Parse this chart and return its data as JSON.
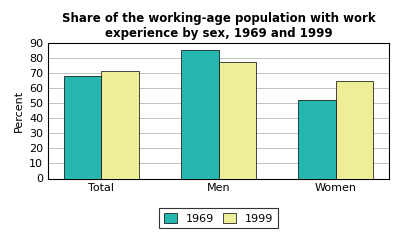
{
  "title": "Share of the working-age population with work\nexperience by sex, 1969 and 1999",
  "categories": [
    "Total",
    "Men",
    "Women"
  ],
  "values_1969": [
    68,
    85,
    52
  ],
  "values_1999": [
    71,
    77,
    65
  ],
  "color_1969": "#26B8B0",
  "color_1999": "#EEEE99",
  "ylabel": "Percent",
  "ylim": [
    0,
    90
  ],
  "yticks": [
    0,
    10,
    20,
    30,
    40,
    50,
    60,
    70,
    80,
    90
  ],
  "legend_labels": [
    "1969",
    "1999"
  ],
  "bar_width": 0.32,
  "title_fontsize": 8.5,
  "axis_fontsize": 8,
  "tick_fontsize": 8,
  "legend_fontsize": 8,
  "bg_color": "#ffffff",
  "grid_color": "#aaaaaa"
}
